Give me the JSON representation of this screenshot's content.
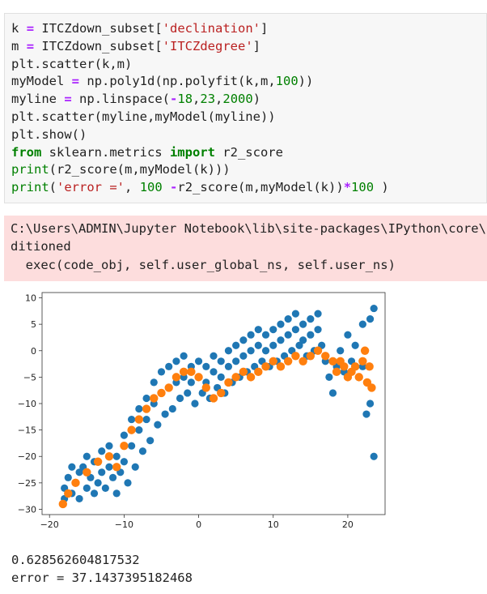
{
  "code_cell": {
    "line1": {
      "var": "k",
      "op": "=",
      "expr": "ITCZdown_subset[",
      "str": "'declination'",
      "end": "]"
    },
    "line2": {
      "var": "m",
      "op": "=",
      "expr": "ITCZdown_subset[",
      "str": "'ITCZdegree'",
      "end": "]"
    },
    "line3": "plt.scatter(k,m)",
    "line4": {
      "var": "myModel",
      "op": "=",
      "expr": "np.poly1d(np.polyfit(k,m,",
      "num": "100",
      "end": "))"
    },
    "line5": {
      "var": "myline",
      "op": "=",
      "expr": "np.linspace(",
      "op2": "-",
      "n1": "18",
      "sep1": ",",
      "n2": "23",
      "sep2": ",",
      "n3": "2000",
      "end": ")"
    },
    "line6": "plt.scatter(myline,myModel(myline))",
    "line7": "plt.show()",
    "line8": {
      "kw1": "from",
      "mod": " sklearn.metrics ",
      "kw2": "import",
      "name": " r2_score"
    },
    "line9": {
      "fn": "print",
      "rest": "(r2_score(m,myModel(k)))"
    },
    "line10": {
      "fn": "print",
      "open": "(",
      "str": "'error ='",
      "mid": ", ",
      "num": "100",
      "space": " ",
      "op": "-",
      "mid2": "r2_score(m,myModel(k))",
      "op2": "*",
      "num2": "100",
      "end": " )"
    }
  },
  "stderr": {
    "line1": "C:\\Users\\ADMIN\\Jupyter Notebook\\lib\\site-packages\\IPython\\core\\interactiveshell.py",
    "line2": "ditioned",
    "line3": "  exec(code_obj, self.user_global_ns, self.user_ns)"
  },
  "output": {
    "r2": "0.628562604817532",
    "error_line": "error = 37.1437395182468"
  },
  "chart_data": {
    "type": "scatter",
    "xlim": [
      -21,
      25
    ],
    "ylim": [
      -31,
      11
    ],
    "xticks": [
      "−20",
      "−10",
      "0",
      "10",
      "20"
    ],
    "yticks": [
      "10",
      "5",
      "0",
      "−5",
      "−10",
      "−15",
      "−20",
      "−25",
      "−30"
    ],
    "series": [
      {
        "color": "#1f77b4",
        "description": "scatter of declination vs ITCZdegree (approximate points)",
        "points": [
          [
            -18,
            -28
          ],
          [
            -18,
            -26
          ],
          [
            -17.5,
            -24
          ],
          [
            -17,
            -22
          ],
          [
            -17,
            -27
          ],
          [
            -16.5,
            -25
          ],
          [
            -16,
            -23
          ],
          [
            -16,
            -28
          ],
          [
            -15.5,
            -22
          ],
          [
            -15,
            -26
          ],
          [
            -15,
            -20
          ],
          [
            -14.5,
            -24
          ],
          [
            -14,
            -27
          ],
          [
            -14,
            -21
          ],
          [
            -13.5,
            -25
          ],
          [
            -13,
            -23
          ],
          [
            -13,
            -19
          ],
          [
            -12.5,
            -26
          ],
          [
            -12,
            -22
          ],
          [
            -12,
            -18
          ],
          [
            -11.5,
            -24
          ],
          [
            -11,
            -20
          ],
          [
            -11,
            -27
          ],
          [
            -10.5,
            -23
          ],
          [
            -10,
            -16
          ],
          [
            -10,
            -21
          ],
          [
            -9.5,
            -25
          ],
          [
            -9,
            -13
          ],
          [
            -9,
            -18
          ],
          [
            -8.5,
            -22
          ],
          [
            -8,
            -11
          ],
          [
            -8,
            -15
          ],
          [
            -7.5,
            -19
          ],
          [
            -7,
            -9
          ],
          [
            -7,
            -13
          ],
          [
            -6.5,
            -17
          ],
          [
            -6,
            -6
          ],
          [
            -6,
            -10
          ],
          [
            -5.5,
            -14
          ],
          [
            -5,
            -4
          ],
          [
            -5,
            -8
          ],
          [
            -4.5,
            -12
          ],
          [
            -4,
            -3
          ],
          [
            -4,
            -7
          ],
          [
            -3.5,
            -11
          ],
          [
            -3,
            -2
          ],
          [
            -3,
            -6
          ],
          [
            -2.5,
            -9
          ],
          [
            -2,
            -1
          ],
          [
            -2,
            -5
          ],
          [
            -1.5,
            -8
          ],
          [
            -1,
            -3
          ],
          [
            -1,
            -6
          ],
          [
            -0.5,
            -10
          ],
          [
            0,
            -2
          ],
          [
            0,
            -5
          ],
          [
            0.5,
            -8
          ],
          [
            1,
            -3
          ],
          [
            1,
            -6
          ],
          [
            1.5,
            -9
          ],
          [
            2,
            -1
          ],
          [
            2,
            -4
          ],
          [
            2.5,
            -7
          ],
          [
            3,
            -2
          ],
          [
            3,
            -5
          ],
          [
            3.5,
            -8
          ],
          [
            4,
            0
          ],
          [
            4,
            -3
          ],
          [
            4.5,
            -6
          ],
          [
            5,
            1
          ],
          [
            5,
            -2
          ],
          [
            5.5,
            -5
          ],
          [
            6,
            2
          ],
          [
            6,
            -1
          ],
          [
            6.5,
            -4
          ],
          [
            7,
            3
          ],
          [
            7,
            0
          ],
          [
            7.5,
            -3
          ],
          [
            8,
            4
          ],
          [
            8,
            1
          ],
          [
            8.5,
            -2
          ],
          [
            9,
            3
          ],
          [
            9,
            0
          ],
          [
            9.5,
            -3
          ],
          [
            10,
            4
          ],
          [
            10,
            1
          ],
          [
            10.5,
            -2
          ],
          [
            11,
            5
          ],
          [
            11,
            2
          ],
          [
            11.5,
            -1
          ],
          [
            12,
            6
          ],
          [
            12,
            3
          ],
          [
            12.5,
            0
          ],
          [
            13,
            7
          ],
          [
            13,
            4
          ],
          [
            13.5,
            1
          ],
          [
            14,
            5
          ],
          [
            14,
            2
          ],
          [
            14.5,
            -1
          ],
          [
            15,
            6
          ],
          [
            15,
            3
          ],
          [
            15.5,
            0
          ],
          [
            16,
            7
          ],
          [
            16,
            4
          ],
          [
            16.5,
            1
          ],
          [
            17,
            -2
          ],
          [
            17.5,
            -5
          ],
          [
            18,
            -8
          ],
          [
            18.5,
            -3
          ],
          [
            19,
            0
          ],
          [
            19.5,
            -4
          ],
          [
            20,
            3
          ],
          [
            20.5,
            -2
          ],
          [
            21,
            1
          ],
          [
            21.5,
            -5
          ],
          [
            22,
            5
          ],
          [
            22,
            -3
          ],
          [
            22.5,
            -12
          ],
          [
            23,
            6
          ],
          [
            23,
            -10
          ],
          [
            23.5,
            -20
          ],
          [
            23.5,
            8
          ]
        ]
      },
      {
        "color": "#ff7f0e",
        "description": "polynomial model fit myModel(myline)",
        "points": [
          [
            -18.2,
            -29
          ],
          [
            -17.5,
            -27
          ],
          [
            -16.5,
            -25
          ],
          [
            -15,
            -23
          ],
          [
            -13.5,
            -21
          ],
          [
            -12,
            -20
          ],
          [
            -11,
            -22
          ],
          [
            -10,
            -18
          ],
          [
            -9,
            -15
          ],
          [
            -8,
            -13
          ],
          [
            -7,
            -11
          ],
          [
            -6,
            -9
          ],
          [
            -5,
            -8
          ],
          [
            -4,
            -7
          ],
          [
            -3,
            -5
          ],
          [
            -2,
            -4
          ],
          [
            -1,
            -4
          ],
          [
            0,
            -5
          ],
          [
            1,
            -7
          ],
          [
            2,
            -9
          ],
          [
            3,
            -8
          ],
          [
            4,
            -6
          ],
          [
            5,
            -5
          ],
          [
            6,
            -4
          ],
          [
            7,
            -5
          ],
          [
            8,
            -4
          ],
          [
            9,
            -3
          ],
          [
            10,
            -2
          ],
          [
            11,
            -3
          ],
          [
            12,
            -2
          ],
          [
            13,
            -1
          ],
          [
            14,
            -2
          ],
          [
            15,
            -1
          ],
          [
            16,
            0
          ],
          [
            17,
            -1
          ],
          [
            18,
            -2
          ],
          [
            18.5,
            -4
          ],
          [
            19,
            -2
          ],
          [
            19.5,
            -3
          ],
          [
            20,
            -5
          ],
          [
            20.5,
            -4
          ],
          [
            21,
            -3
          ],
          [
            21.5,
            -5
          ],
          [
            22,
            -2
          ],
          [
            22.3,
            0
          ],
          [
            22.6,
            -6
          ],
          [
            22.9,
            -3
          ],
          [
            23.2,
            -7
          ]
        ]
      }
    ]
  }
}
